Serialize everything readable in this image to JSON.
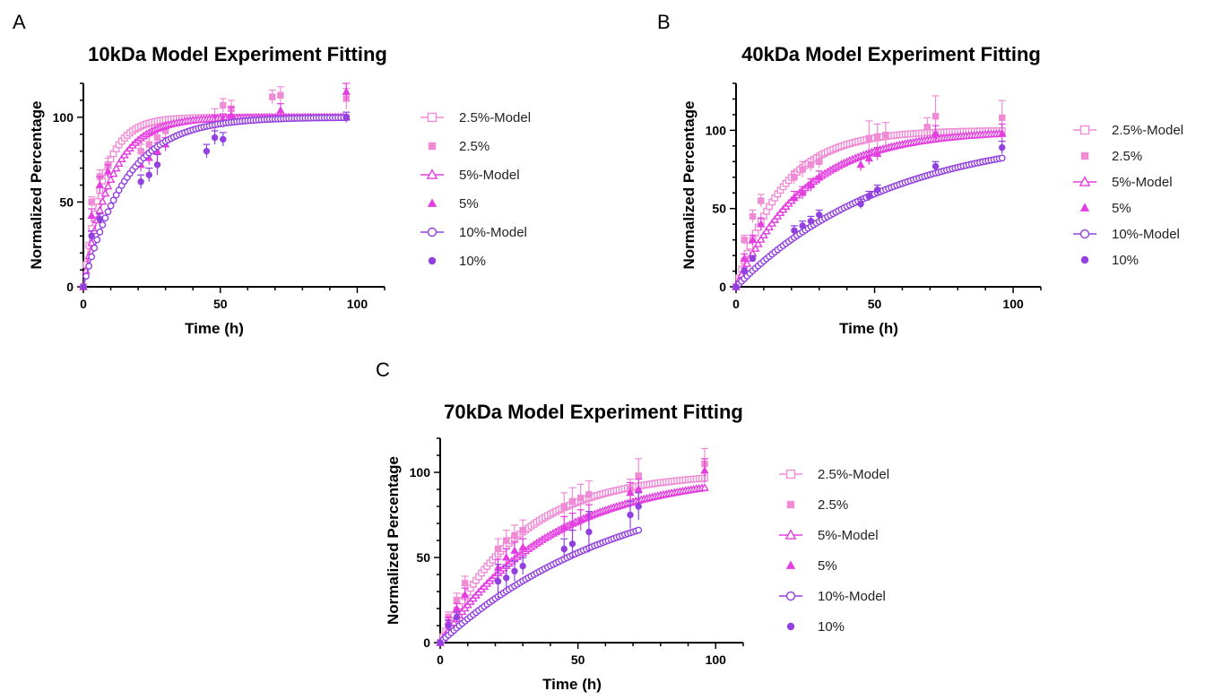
{
  "colors": {
    "c25": "#f08bd6",
    "c5": "#e43ee0",
    "c10": "#9240e0"
  },
  "chart_data": [
    {
      "panel": "A",
      "type": "scatter",
      "title": "10kDa Model Experiment Fitting",
      "xlabel": "Time (h)",
      "ylabel": "Normalized Percentage",
      "xlim": [
        0,
        110
      ],
      "ylim": [
        0,
        120
      ],
      "xticks": [
        "0",
        "50",
        "100"
      ],
      "yticks": [
        "0",
        "50",
        "100"
      ],
      "legend_position": "right",
      "series": [
        {
          "name": "2.5%-Model",
          "kind": "model",
          "color": "#f08bd6",
          "marker": "square",
          "k": 0.14,
          "xmax": 96
        },
        {
          "name": "2.5%",
          "kind": "data",
          "color": "#f08bd6",
          "marker": "square",
          "x": [
            0,
            3,
            6,
            9,
            21,
            24,
            27,
            30,
            48,
            51,
            54,
            69,
            72,
            96
          ],
          "y": [
            0,
            50,
            65,
            72,
            80,
            84,
            88,
            92,
            100,
            107,
            105,
            112,
            113,
            111
          ],
          "err": [
            0,
            3,
            4,
            4,
            4,
            5,
            6,
            4,
            5,
            4,
            5,
            4,
            5,
            6
          ]
        },
        {
          "name": "5%-Model",
          "kind": "model",
          "color": "#e43ee0",
          "marker": "triangle",
          "k": 0.1,
          "xmax": 96
        },
        {
          "name": "5%",
          "kind": "data",
          "color": "#e43ee0",
          "marker": "triangle",
          "x": [
            0,
            3,
            6,
            9,
            21,
            24,
            27,
            30,
            48,
            51,
            54,
            72,
            96
          ],
          "y": [
            0,
            42,
            60,
            68,
            72,
            76,
            80,
            84,
            96,
            98,
            101,
            104,
            115
          ],
          "err": [
            0,
            4,
            5,
            4,
            4,
            4,
            5,
            4,
            5,
            4,
            5,
            4,
            5
          ]
        },
        {
          "name": "10%-Model",
          "kind": "model",
          "color": "#9240e0",
          "marker": "circle",
          "k": 0.065,
          "xmax": 96
        },
        {
          "name": "10%",
          "kind": "data",
          "color": "#9240e0",
          "marker": "circle",
          "x": [
            0,
            3,
            6,
            21,
            24,
            27,
            45,
            48,
            51,
            96
          ],
          "y": [
            0,
            30,
            40,
            62,
            66,
            72,
            80,
            88,
            87,
            100
          ],
          "err": [
            0,
            3,
            3,
            4,
            4,
            6,
            4,
            4,
            4,
            3
          ]
        }
      ]
    },
    {
      "panel": "B",
      "type": "scatter",
      "title": "40kDa Model Experiment Fitting",
      "xlabel": "Time (h)",
      "ylabel": "Normalized Percentage",
      "xlim": [
        0,
        110
      ],
      "ylim": [
        0,
        130
      ],
      "xticks": [
        "0",
        "50",
        "100"
      ],
      "yticks": [
        "0",
        "50",
        "100"
      ],
      "legend_position": "right",
      "series": [
        {
          "name": "2.5%-Model",
          "kind": "model",
          "color": "#f08bd6",
          "marker": "square",
          "k": 0.06,
          "xmax": 96
        },
        {
          "name": "2.5%",
          "kind": "data",
          "color": "#f08bd6",
          "marker": "square",
          "x": [
            0,
            3,
            6,
            9,
            21,
            24,
            27,
            30,
            48,
            51,
            54,
            69,
            72,
            96
          ],
          "y": [
            0,
            30,
            45,
            55,
            70,
            75,
            78,
            80,
            95,
            96,
            97,
            102,
            109,
            108
          ],
          "err": [
            0,
            3,
            4,
            4,
            4,
            5,
            4,
            4,
            11,
            8,
            8,
            6,
            13,
            11
          ]
        },
        {
          "name": "5%-Model",
          "kind": "model",
          "color": "#e43ee0",
          "marker": "triangle",
          "k": 0.04,
          "xmax": 96
        },
        {
          "name": "5%",
          "kind": "data",
          "color": "#e43ee0",
          "marker": "triangle",
          "x": [
            0,
            3,
            6,
            9,
            21,
            24,
            27,
            30,
            45,
            48,
            51,
            72,
            96
          ],
          "y": [
            0,
            18,
            30,
            40,
            57,
            60,
            65,
            70,
            78,
            82,
            85,
            98,
            98
          ],
          "err": [
            0,
            3,
            3,
            4,
            4,
            4,
            4,
            4,
            4,
            4,
            4,
            5,
            6
          ]
        },
        {
          "name": "10%-Model",
          "kind": "model",
          "color": "#9240e0",
          "marker": "circle",
          "k": 0.018,
          "xmax": 96
        },
        {
          "name": "10%",
          "kind": "data",
          "color": "#9240e0",
          "marker": "circle",
          "x": [
            0,
            3,
            6,
            21,
            24,
            27,
            30,
            45,
            48,
            51,
            72,
            96
          ],
          "y": [
            0,
            10,
            18,
            36,
            39,
            42,
            46,
            53,
            58,
            62,
            77,
            89
          ],
          "err": [
            0,
            2,
            2,
            3,
            3,
            3,
            3,
            3,
            3,
            3,
            3,
            4
          ]
        }
      ]
    },
    {
      "panel": "C",
      "type": "scatter",
      "title": "70kDa Model Experiment Fitting",
      "xlabel": "Time (h)",
      "ylabel": "Normalized Percentage",
      "xlim": [
        0,
        110
      ],
      "ylim": [
        0,
        120
      ],
      "xticks": [
        "0",
        "50",
        "100"
      ],
      "yticks": [
        "0",
        "50",
        "100"
      ],
      "legend_position": "right",
      "series": [
        {
          "name": "2.5%-Model",
          "kind": "model",
          "color": "#f08bd6",
          "marker": "square",
          "k": 0.035,
          "xmax": 96
        },
        {
          "name": "2.5%",
          "kind": "data",
          "color": "#f08bd6",
          "marker": "square",
          "x": [
            0,
            3,
            6,
            9,
            21,
            24,
            27,
            30,
            45,
            48,
            51,
            54,
            69,
            72,
            96
          ],
          "y": [
            0,
            15,
            25,
            35,
            55,
            60,
            63,
            66,
            80,
            83,
            85,
            87,
            90,
            98,
            105
          ],
          "err": [
            0,
            3,
            4,
            4,
            6,
            6,
            6,
            6,
            8,
            8,
            8,
            8,
            6,
            10,
            9
          ]
        },
        {
          "name": "5%-Model",
          "kind": "model",
          "color": "#e43ee0",
          "marker": "triangle",
          "k": 0.025,
          "xmax": 96
        },
        {
          "name": "5%",
          "kind": "data",
          "color": "#e43ee0",
          "marker": "triangle",
          "x": [
            0,
            3,
            6,
            9,
            21,
            24,
            27,
            30,
            45,
            48,
            51,
            54,
            69,
            72,
            96
          ],
          "y": [
            0,
            12,
            20,
            28,
            44,
            50,
            54,
            56,
            68,
            70,
            72,
            75,
            88,
            90,
            101
          ],
          "err": [
            0,
            3,
            3,
            4,
            5,
            5,
            5,
            5,
            6,
            6,
            6,
            6,
            6,
            6,
            7
          ]
        },
        {
          "name": "10%-Model",
          "kind": "model",
          "color": "#9240e0",
          "marker": "circle",
          "k": 0.015,
          "xmax": 72
        },
        {
          "name": "10%",
          "kind": "data",
          "color": "#9240e0",
          "marker": "circle",
          "x": [
            0,
            3,
            6,
            21,
            24,
            27,
            30,
            45,
            48,
            54,
            69,
            72
          ],
          "y": [
            0,
            10,
            15,
            36,
            38,
            42,
            45,
            55,
            58,
            65,
            75,
            80
          ],
          "err": [
            0,
            3,
            3,
            10,
            7,
            6,
            5,
            6,
            8,
            12,
            8,
            8
          ]
        }
      ]
    }
  ]
}
